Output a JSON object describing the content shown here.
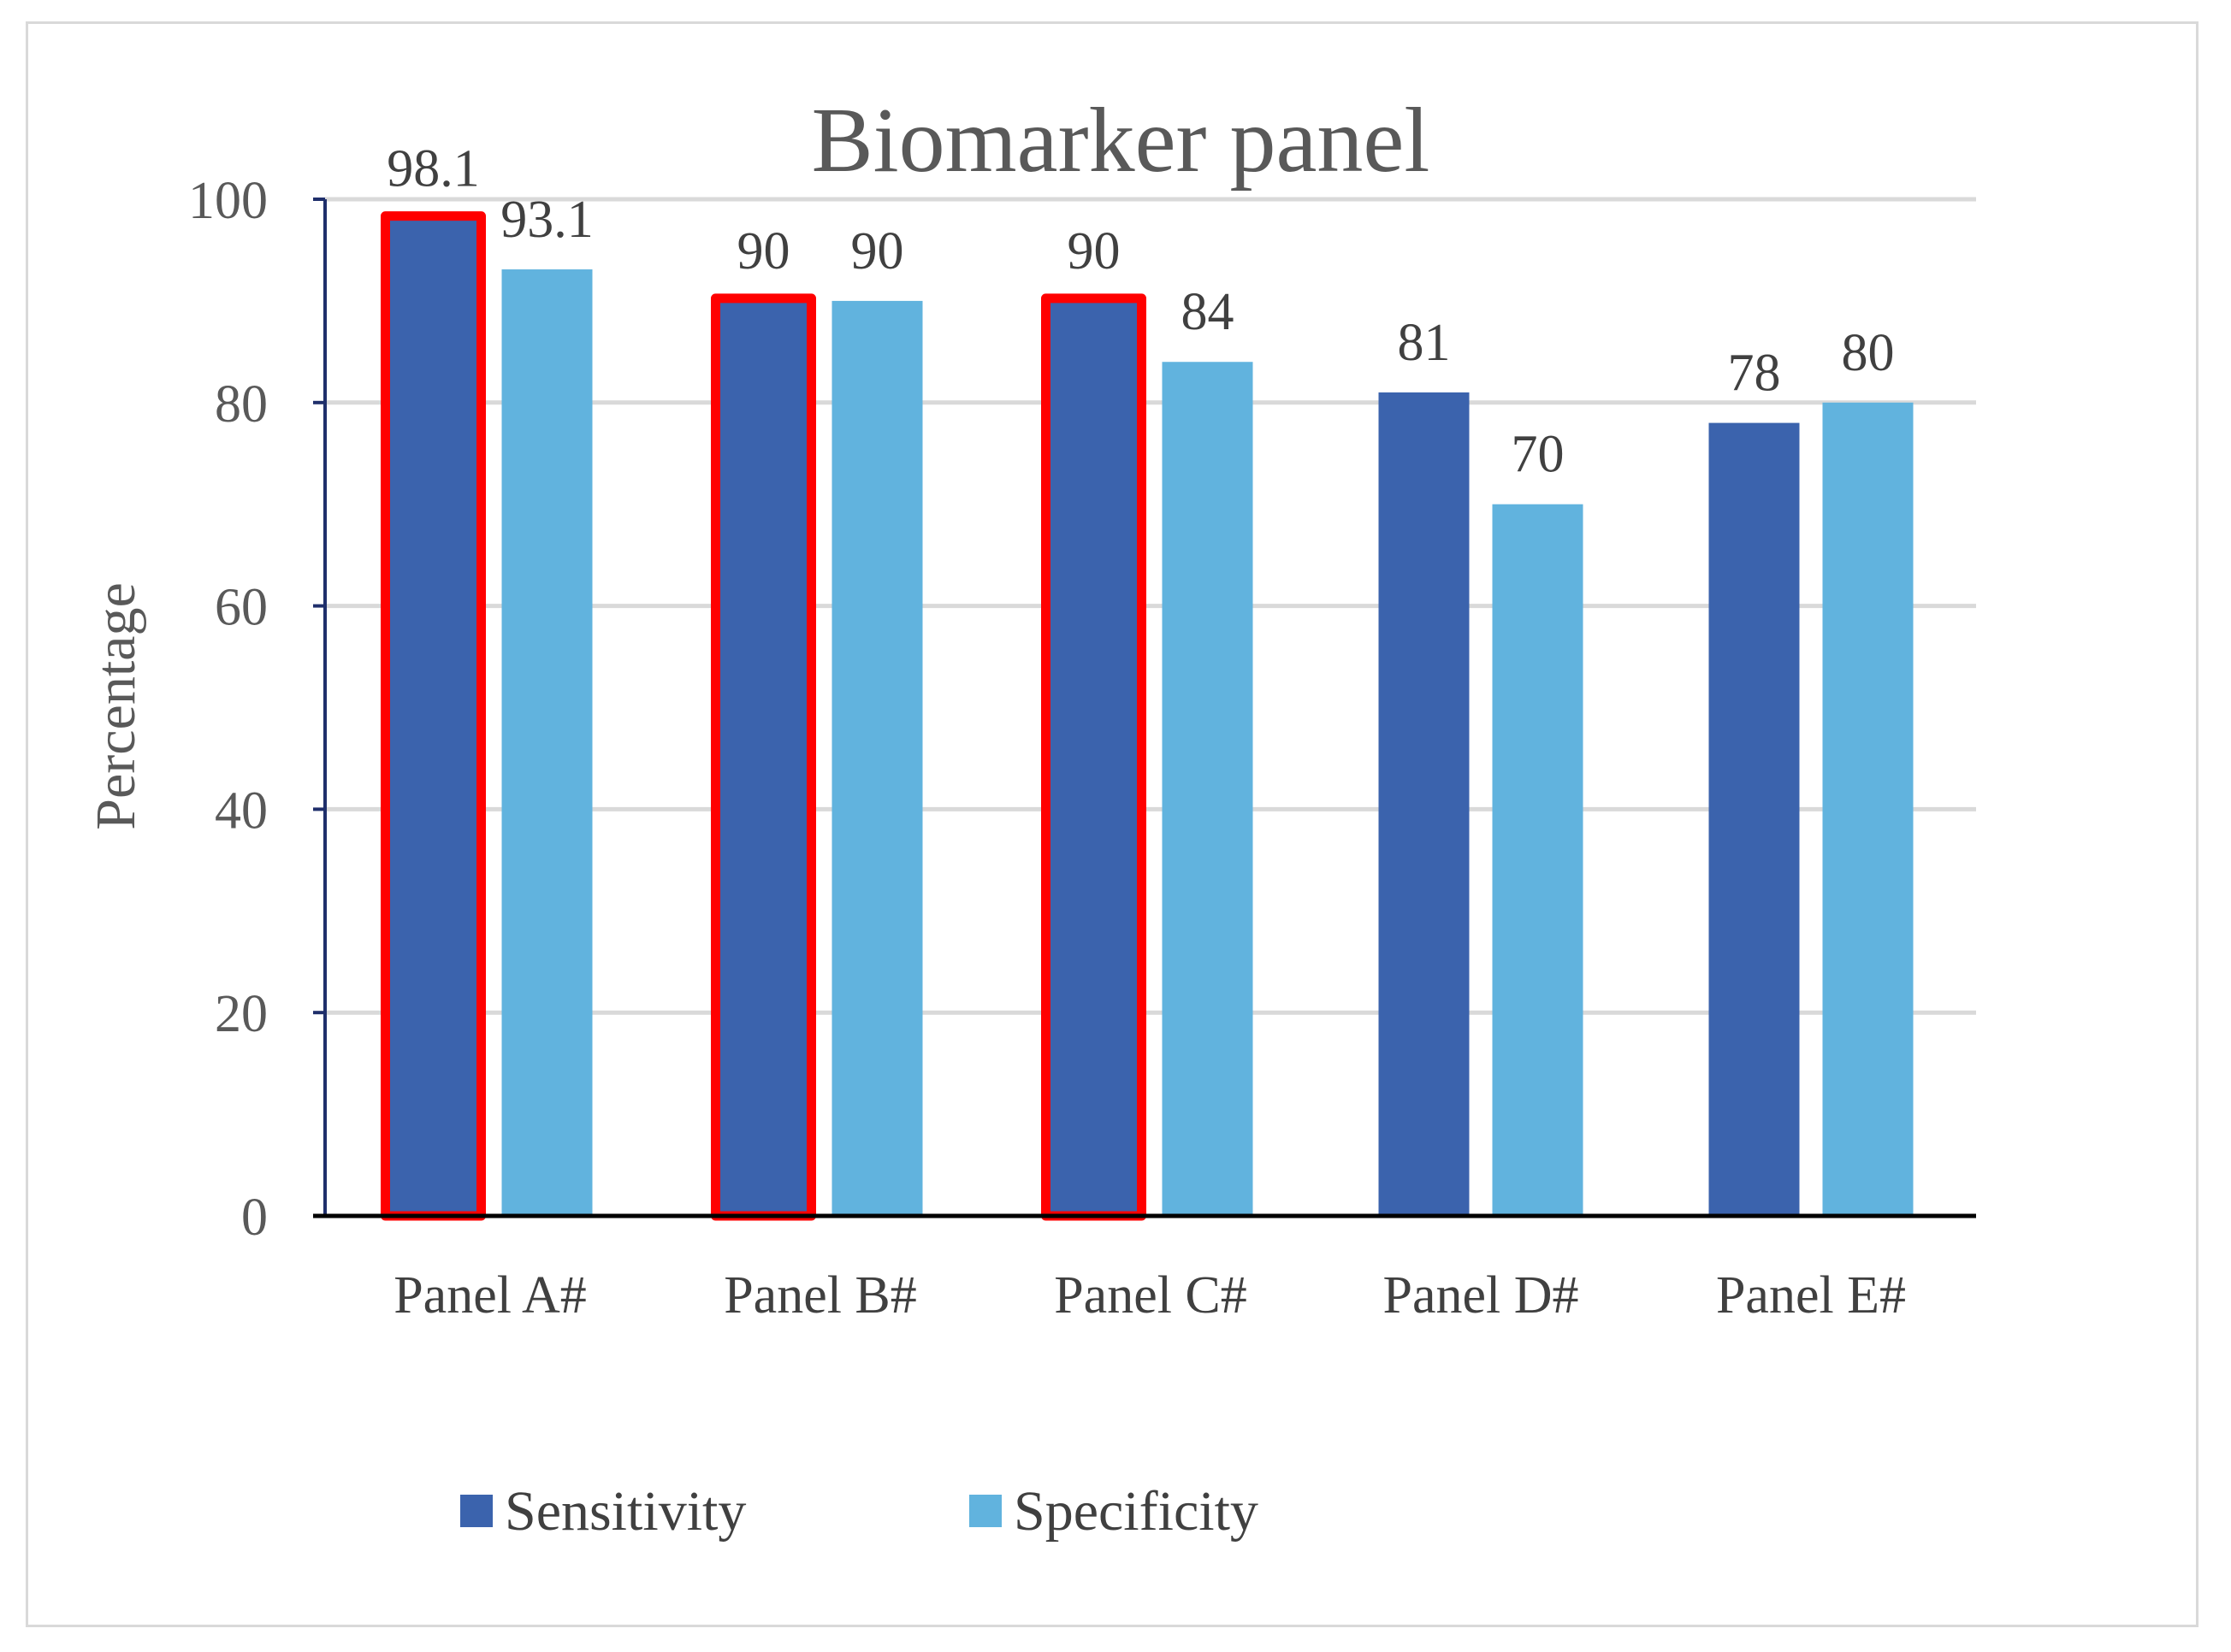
{
  "chart_data": {
    "type": "bar",
    "title": "Biomarker panel",
    "xlabel": "",
    "ylabel": "Percentage",
    "ylim": [
      0,
      100
    ],
    "yticks": [
      0,
      20,
      40,
      60,
      80,
      100
    ],
    "grid": true,
    "legend_position": "bottom",
    "categories": [
      "Panel A#",
      "Panel B#",
      "Panel C#",
      "Panel D#",
      "Panel E#"
    ],
    "series": [
      {
        "name": "Sensitivity",
        "color": "#3b63ad",
        "values": [
          98.1,
          90,
          90,
          81,
          78
        ]
      },
      {
        "name": "Specificity",
        "color": "#61b3de",
        "values": [
          93.1,
          90,
          84,
          70,
          80
        ]
      }
    ],
    "highlight": {
      "series": "Sensitivity",
      "categories": [
        "Panel A#",
        "Panel B#",
        "Panel C#"
      ],
      "color": "#ff0000"
    },
    "colors": {
      "grid": "#d9d9d9",
      "axis": "#000000",
      "y_axis": "#1f2f6b"
    }
  }
}
